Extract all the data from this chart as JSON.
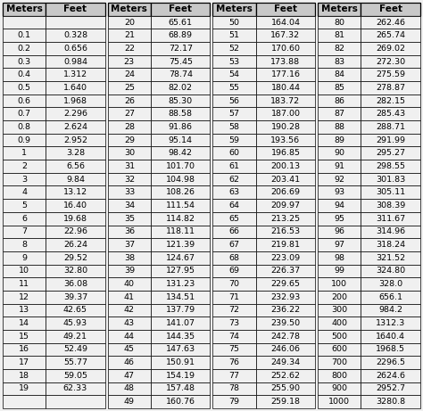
{
  "columns": [
    {
      "meters": [
        "",
        "0.1",
        "0.2",
        "0.3",
        "0.4",
        "0.5",
        "0.6",
        "0.7",
        "0.8",
        "0.9",
        "1",
        "2",
        "3",
        "4",
        "5",
        "6",
        "7",
        "8",
        "9",
        "10",
        "11",
        "12",
        "13",
        "14",
        "15",
        "16",
        "17",
        "18",
        "19"
      ],
      "feet": [
        "",
        "0.328",
        "0.656",
        "0.984",
        "1.312",
        "1.640",
        "1.968",
        "2.296",
        "2.624",
        "2.952",
        "3.28",
        "6.56",
        "9.84",
        "13.12",
        "16.40",
        "19.68",
        "22.96",
        "26.24",
        "29.52",
        "32.80",
        "36.08",
        "39.37",
        "42.65",
        "45.93",
        "49.21",
        "52.49",
        "55.77",
        "59.05",
        "62.33"
      ]
    },
    {
      "meters": [
        "20",
        "21",
        "22",
        "23",
        "24",
        "25",
        "26",
        "27",
        "28",
        "29",
        "30",
        "31",
        "32",
        "33",
        "34",
        "35",
        "36",
        "37",
        "38",
        "39",
        "40",
        "41",
        "42",
        "43",
        "44",
        "45",
        "46",
        "47",
        "48",
        "49"
      ],
      "feet": [
        "65.61",
        "68.89",
        "72.17",
        "75.45",
        "78.74",
        "82.02",
        "85.30",
        "88.58",
        "91.86",
        "95.14",
        "98.42",
        "101.70",
        "104.98",
        "108.26",
        "111.54",
        "114.82",
        "118.11",
        "121.39",
        "124.67",
        "127.95",
        "131.23",
        "134.51",
        "137.79",
        "141.07",
        "144.35",
        "147.63",
        "150.91",
        "154.19",
        "157.48",
        "160.76"
      ]
    },
    {
      "meters": [
        "50",
        "51",
        "52",
        "53",
        "54",
        "55",
        "56",
        "57",
        "58",
        "59",
        "60",
        "61",
        "62",
        "63",
        "64",
        "65",
        "66",
        "67",
        "68",
        "69",
        "70",
        "71",
        "72",
        "73",
        "74",
        "75",
        "76",
        "77",
        "78",
        "79"
      ],
      "feet": [
        "164.04",
        "167.32",
        "170.60",
        "173.88",
        "177.16",
        "180.44",
        "183.72",
        "187.00",
        "190.28",
        "193.56",
        "196.85",
        "200.13",
        "203.41",
        "206.69",
        "209.97",
        "213.25",
        "216.53",
        "219.81",
        "223.09",
        "226.37",
        "229.65",
        "232.93",
        "236.22",
        "239.50",
        "242.78",
        "246.06",
        "249.34",
        "252.62",
        "255.90",
        "259.18"
      ]
    },
    {
      "meters": [
        "80",
        "81",
        "82",
        "83",
        "84",
        "85",
        "86",
        "87",
        "88",
        "89",
        "90",
        "91",
        "92",
        "93",
        "94",
        "95",
        "96",
        "97",
        "98",
        "99",
        "100",
        "200",
        "300",
        "400",
        "500",
        "600",
        "700",
        "800",
        "900",
        "1000"
      ],
      "feet": [
        "262.46",
        "265.74",
        "269.02",
        "272.30",
        "275.59",
        "278.87",
        "282.15",
        "285.43",
        "288.71",
        "291.99",
        "295.27",
        "298.55",
        "301.83",
        "305.11",
        "308.39",
        "311.67",
        "314.96",
        "318.24",
        "321.52",
        "324.80",
        "328.0",
        "656.1",
        "984.2",
        "1312.3",
        "1640.4",
        "1968.5",
        "2296.5",
        "2624.6",
        "2952.7",
        "3280.8"
      ]
    }
  ],
  "header_bg": "#c8c8c8",
  "cell_bg": "#f0f0f0",
  "border_color": "#000000",
  "font_size": 6.8,
  "header_font_size": 7.5,
  "num_data_rows": 30,
  "num_groups": 4
}
